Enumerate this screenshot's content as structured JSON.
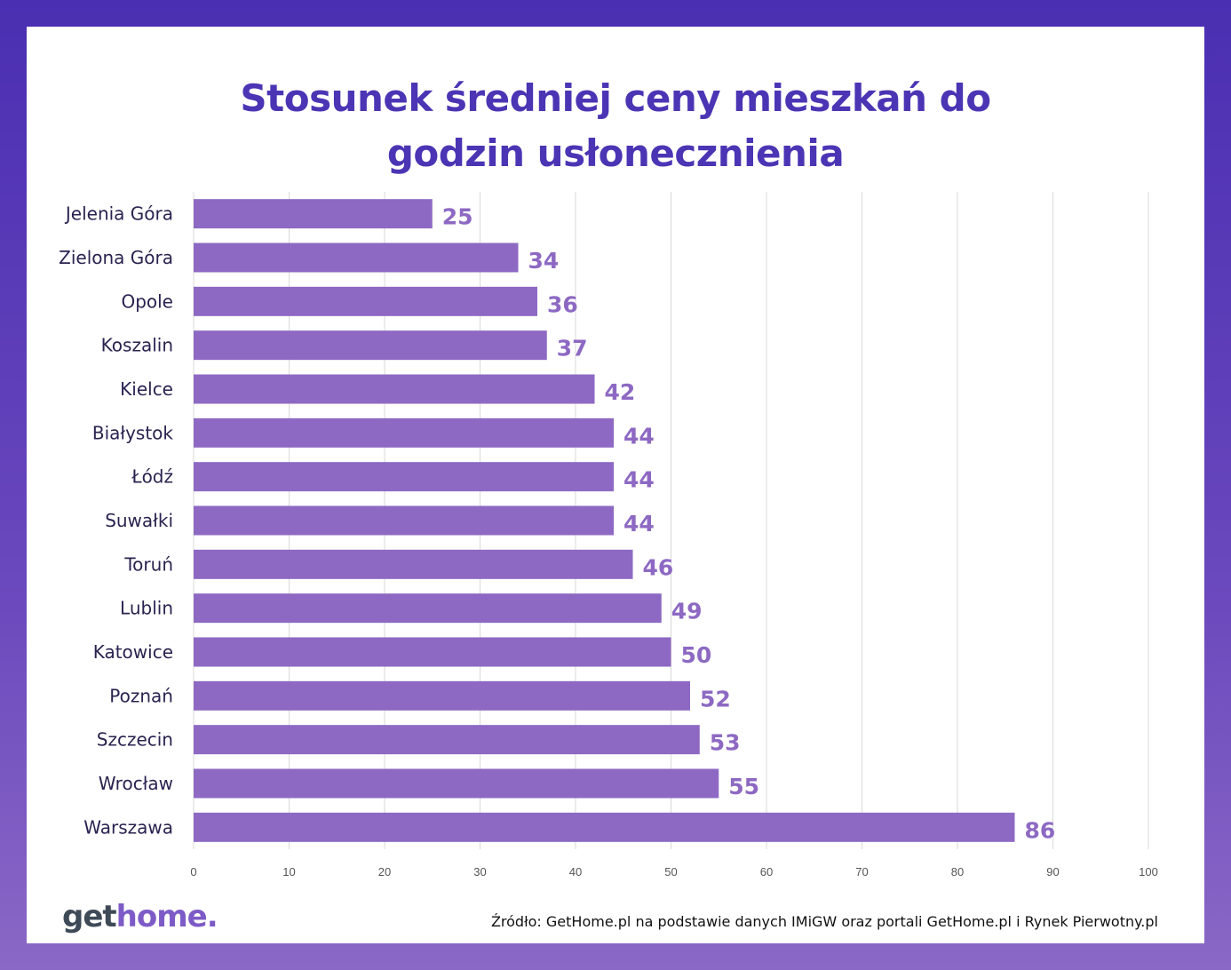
{
  "title_line1": "Stosunek średniej ceny mieszkań do",
  "title_line2": "godzin usłonecznienia",
  "logo_part1": "get",
  "logo_part2": "home.",
  "source": "Źródło: GetHome.pl na podstawie danych IMiGW  oraz portali GetHome.pl i Rynek Pierwotny.pl",
  "colors": {
    "bar": "#8d69c3",
    "label": "#8d69c3",
    "title": "#4b35b4",
    "frame": "#4a2fb2"
  },
  "chart_data": {
    "type": "bar",
    "orientation": "horizontal",
    "categories": [
      "Jelenia Góra",
      "Zielona Góra",
      "Opole",
      "Koszalin",
      "Kielce",
      "Białystok",
      "Łódź",
      "Suwałki",
      "Toruń",
      "Lublin",
      "Katowice",
      "Poznań",
      "Szczecin",
      "Wrocław",
      "Warszawa"
    ],
    "values": [
      25,
      34,
      36,
      37,
      42,
      44,
      44,
      44,
      46,
      49,
      50,
      52,
      53,
      55,
      86
    ],
    "xlim": [
      0,
      100
    ],
    "xticks": [
      0,
      10,
      20,
      30,
      40,
      50,
      60,
      70,
      80,
      90,
      100
    ],
    "grid": "vertical"
  }
}
